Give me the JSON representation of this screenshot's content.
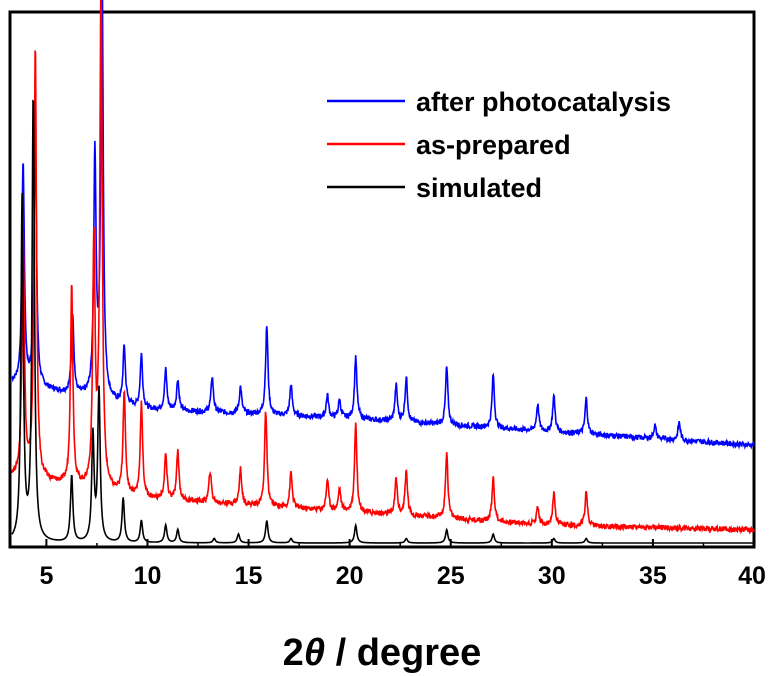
{
  "chart_data": {
    "type": "line",
    "xlabel_parts": {
      "prefix": "2",
      "symbol": "θ",
      "suffix": " / degree"
    },
    "ylabel": "",
    "xlim": [
      3.2,
      40
    ],
    "x_ticks": [
      5,
      10,
      15,
      20,
      25,
      30,
      35,
      40
    ],
    "grid": false,
    "legend_position": "top-right",
    "series": [
      {
        "name": "after photocatalysis",
        "color": "#0000ff",
        "offset": 0.36,
        "baseline": [
          [
            3.3,
            0.36
          ],
          [
            10,
            0.3
          ],
          [
            20,
            0.28
          ],
          [
            30,
            0.25
          ],
          [
            40,
            0.22
          ]
        ],
        "peaks": [
          [
            3.85,
            0.5
          ],
          [
            4.45,
            0.58
          ],
          [
            6.3,
            0.18
          ],
          [
            7.4,
            0.54
          ],
          [
            7.75,
            1.0
          ],
          [
            8.85,
            0.13
          ],
          [
            9.7,
            0.12
          ],
          [
            10.9,
            0.09
          ],
          [
            11.5,
            0.07
          ],
          [
            13.2,
            0.08
          ],
          [
            14.6,
            0.06
          ],
          [
            15.9,
            0.2
          ],
          [
            17.1,
            0.07
          ],
          [
            18.9,
            0.05
          ],
          [
            19.5,
            0.04
          ],
          [
            20.3,
            0.14
          ],
          [
            22.3,
            0.08
          ],
          [
            22.8,
            0.1
          ],
          [
            24.8,
            0.13
          ],
          [
            27.1,
            0.12
          ],
          [
            29.3,
            0.06
          ],
          [
            30.1,
            0.08
          ],
          [
            31.7,
            0.08
          ],
          [
            35.1,
            0.03
          ],
          [
            36.3,
            0.04
          ]
        ]
      },
      {
        "name": "as-prepared",
        "color": "#ff0000",
        "offset": 0.13,
        "baseline": [
          [
            3.3,
            0.15
          ],
          [
            10,
            0.1
          ],
          [
            20,
            0.07
          ],
          [
            30,
            0.04
          ],
          [
            40,
            0.03
          ]
        ],
        "peaks": [
          [
            3.85,
            0.55
          ],
          [
            4.45,
            0.97
          ],
          [
            6.25,
            0.45
          ],
          [
            7.35,
            0.55
          ],
          [
            7.7,
            1.13
          ],
          [
            8.85,
            0.23
          ],
          [
            9.7,
            0.21
          ],
          [
            10.9,
            0.1
          ],
          [
            11.5,
            0.11
          ],
          [
            13.1,
            0.07
          ],
          [
            14.6,
            0.08
          ],
          [
            15.85,
            0.21
          ],
          [
            17.1,
            0.08
          ],
          [
            18.9,
            0.07
          ],
          [
            19.5,
            0.05
          ],
          [
            20.3,
            0.2
          ],
          [
            22.3,
            0.08
          ],
          [
            22.8,
            0.1
          ],
          [
            24.8,
            0.15
          ],
          [
            27.1,
            0.1
          ],
          [
            29.3,
            0.04
          ],
          [
            30.1,
            0.07
          ],
          [
            31.7,
            0.08
          ]
        ]
      },
      {
        "name": "simulated",
        "color": "#000000",
        "offset": 0.0,
        "baseline": [
          [
            3.3,
            0.0
          ],
          [
            40,
            0.0
          ]
        ],
        "peaks": [
          [
            3.8,
            0.77
          ],
          [
            4.35,
            1.0
          ],
          [
            6.25,
            0.15
          ],
          [
            7.3,
            0.24
          ],
          [
            7.6,
            0.34
          ],
          [
            8.8,
            0.1
          ],
          [
            9.7,
            0.05
          ],
          [
            10.9,
            0.04
          ],
          [
            11.5,
            0.03
          ],
          [
            13.3,
            0.01
          ],
          [
            14.5,
            0.02
          ],
          [
            15.9,
            0.05
          ],
          [
            17.1,
            0.01
          ],
          [
            20.3,
            0.04
          ],
          [
            22.8,
            0.01
          ],
          [
            24.8,
            0.03
          ],
          [
            27.1,
            0.02
          ],
          [
            30.1,
            0.01
          ],
          [
            31.7,
            0.01
          ]
        ]
      }
    ]
  }
}
